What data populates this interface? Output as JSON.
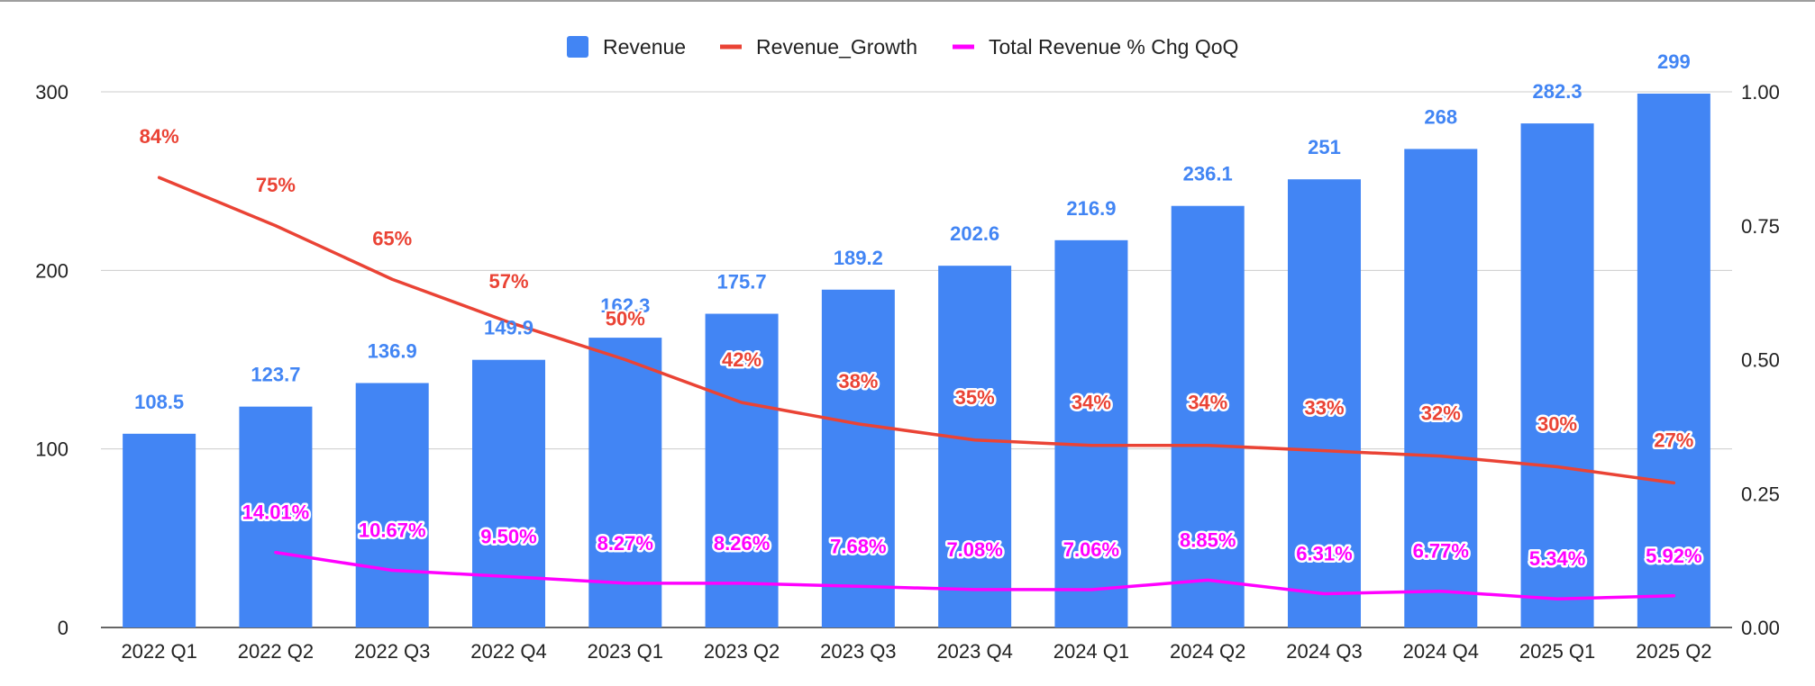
{
  "chart_data": {
    "type": "bar",
    "categories": [
      "2022 Q1",
      "2022 Q2",
      "2022 Q3",
      "2022 Q4",
      "2023 Q1",
      "2023 Q2",
      "2023 Q3",
      "2023 Q4",
      "2024 Q1",
      "2024 Q2",
      "2024 Q3",
      "2024 Q4",
      "2025 Q1",
      "2025 Q2"
    ],
    "series": [
      {
        "name": "Revenue",
        "type": "bar",
        "axis": "left",
        "color": "#4285f4",
        "values": [
          108.5,
          123.7,
          136.9,
          149.9,
          162.3,
          175.7,
          189.2,
          202.6,
          216.9,
          236.1,
          251,
          268,
          282.3,
          299
        ],
        "labels": [
          "108.5",
          "123.7",
          "136.9",
          "149.9",
          "162.3",
          "175.7",
          "189.2",
          "202.6",
          "216.9",
          "236.1",
          "251",
          "268",
          "282.3",
          "299"
        ]
      },
      {
        "name": "Revenue_Growth",
        "type": "line",
        "axis": "right",
        "color": "#ea4335",
        "values": [
          0.84,
          0.75,
          0.65,
          0.57,
          0.5,
          0.42,
          0.38,
          0.35,
          0.34,
          0.34,
          0.33,
          0.32,
          0.3,
          0.27
        ],
        "labels": [
          "84%",
          "75%",
          "65%",
          "57%",
          "50%",
          "42%",
          "38%",
          "35%",
          "34%",
          "34%",
          "33%",
          "32%",
          "30%",
          "27%"
        ]
      },
      {
        "name": "Total Revenue % Chg QoQ",
        "type": "line",
        "axis": "right",
        "color": "#ff00ff",
        "values": [
          null,
          0.1401,
          0.1067,
          0.095,
          0.0827,
          0.0826,
          0.0768,
          0.0708,
          0.0706,
          0.0885,
          0.0631,
          0.0677,
          0.0534,
          0.0592
        ],
        "labels": [
          null,
          "14.01%",
          "10.67%",
          "9.50%",
          "8.27%",
          "8.26%",
          "7.68%",
          "7.08%",
          "7.06%",
          "8.85%",
          "6.31%",
          "6.77%",
          "5.34%",
          "5.92%"
        ]
      }
    ],
    "y_left": {
      "ylim": [
        0,
        300
      ],
      "ticks": [
        "0",
        "100",
        "200",
        "300"
      ],
      "tick_values": [
        0,
        100,
        200,
        300
      ]
    },
    "y_right": {
      "ylim": [
        0,
        1
      ],
      "ticks": [
        "0.00",
        "0.25",
        "0.50",
        "0.75",
        "1.00"
      ],
      "tick_values": [
        0,
        0.25,
        0.5,
        0.75,
        1
      ]
    },
    "legend_position": "top-center",
    "grid": true
  }
}
